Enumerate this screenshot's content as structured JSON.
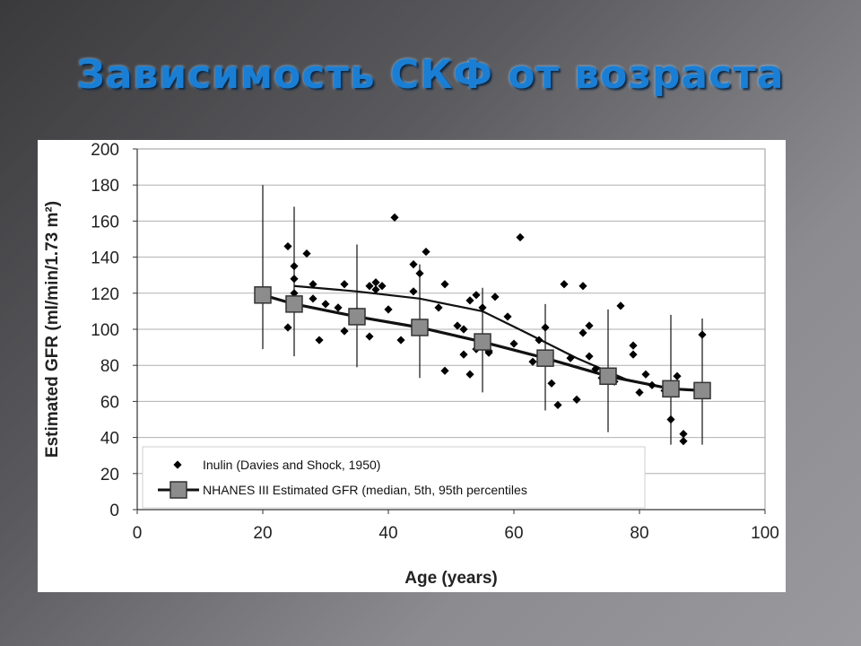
{
  "slide": {
    "title": "Зависимость СКФ от возраста"
  },
  "colors": {
    "title": "#1a7fd4",
    "grid": "#b0b0b0",
    "points": "#000000",
    "marker_fill": "#8c8c8c"
  },
  "chart_data": {
    "type": "scatter",
    "title": "",
    "xlabel": "Age (years)",
    "ylabel": "Estimated GFR (ml/min/1.73 m²)",
    "xlim": [
      0,
      100
    ],
    "ylim": [
      0,
      200
    ],
    "xticks": [
      0,
      20,
      40,
      60,
      80,
      100
    ],
    "yticks": [
      0,
      20,
      40,
      60,
      80,
      100,
      120,
      140,
      160,
      180,
      200
    ],
    "grid": true,
    "legend_position": "bottom-left",
    "legend": [
      {
        "label": "Inulin (Davies and Shock, 1950)",
        "marker": "diamond"
      },
      {
        "label": "NHANES III Estimated GFR (median, 5th, 95th percentiles",
        "marker": "square-line"
      }
    ],
    "series": [
      {
        "name": "Inulin (Davies and Shock, 1950)",
        "kind": "scatter",
        "points": [
          [
            24,
            146
          ],
          [
            24,
            101
          ],
          [
            25,
            135
          ],
          [
            25,
            128
          ],
          [
            25,
            120
          ],
          [
            27,
            142
          ],
          [
            28,
            125
          ],
          [
            28,
            117
          ],
          [
            29,
            94
          ],
          [
            30,
            114
          ],
          [
            32,
            112
          ],
          [
            33,
            125
          ],
          [
            33,
            99
          ],
          [
            35,
            110
          ],
          [
            37,
            96
          ],
          [
            37,
            124
          ],
          [
            38,
            126
          ],
          [
            38,
            122
          ],
          [
            39,
            124
          ],
          [
            40,
            111
          ],
          [
            41,
            162
          ],
          [
            42,
            94
          ],
          [
            44,
            136
          ],
          [
            44,
            121
          ],
          [
            45,
            131
          ],
          [
            46,
            143
          ],
          [
            48,
            112
          ],
          [
            49,
            125
          ],
          [
            49,
            77
          ],
          [
            51,
            102
          ],
          [
            52,
            100
          ],
          [
            52,
            86
          ],
          [
            53,
            75
          ],
          [
            53,
            116
          ],
          [
            54,
            119
          ],
          [
            54,
            89
          ],
          [
            55,
            112
          ],
          [
            56,
            88
          ],
          [
            56,
            87
          ],
          [
            57,
            118
          ],
          [
            59,
            107
          ],
          [
            60,
            92
          ],
          [
            61,
            151
          ],
          [
            63,
            82
          ],
          [
            64,
            94
          ],
          [
            65,
            101
          ],
          [
            66,
            70
          ],
          [
            67,
            58
          ],
          [
            68,
            125
          ],
          [
            69,
            84
          ],
          [
            70,
            61
          ],
          [
            71,
            124
          ],
          [
            71,
            98
          ],
          [
            72,
            102
          ],
          [
            72,
            85
          ],
          [
            73,
            78
          ],
          [
            74,
            73
          ],
          [
            76,
            71
          ],
          [
            77,
            113
          ],
          [
            79,
            91
          ],
          [
            79,
            86
          ],
          [
            80,
            65
          ],
          [
            81,
            75
          ],
          [
            82,
            69
          ],
          [
            84,
            66
          ],
          [
            85,
            50
          ],
          [
            86,
            74
          ],
          [
            87,
            42
          ],
          [
            87,
            38
          ],
          [
            90,
            97
          ]
        ]
      },
      {
        "name": "NHANES III Estimated GFR (median, 5th, 95th percentiles",
        "kind": "median-with-range",
        "points": [
          {
            "age": 20,
            "median": 119,
            "p5": 89,
            "p95": 180
          },
          {
            "age": 25,
            "median": 114,
            "p5": 85,
            "p95": 168
          },
          {
            "age": 35,
            "median": 107,
            "p5": 79,
            "p95": 147
          },
          {
            "age": 45,
            "median": 101,
            "p5": 73,
            "p95": 136
          },
          {
            "age": 55,
            "median": 93,
            "p5": 65,
            "p95": 123
          },
          {
            "age": 65,
            "median": 84,
            "p5": 55,
            "p95": 114
          },
          {
            "age": 75,
            "median": 74,
            "p5": 43,
            "p95": 111
          },
          {
            "age": 85,
            "median": 67,
            "p5": 36,
            "p95": 108
          },
          {
            "age": 90,
            "median": 66,
            "p5": 36,
            "p95": 106
          }
        ]
      },
      {
        "name": "",
        "kind": "trend",
        "points": [
          [
            25,
            124
          ],
          [
            35,
            121
          ],
          [
            45,
            117
          ],
          [
            55,
            110
          ],
          [
            62,
            98
          ],
          [
            70,
            84
          ],
          [
            78,
            72
          ],
          [
            85,
            67
          ],
          [
            90,
            66
          ]
        ]
      }
    ]
  }
}
